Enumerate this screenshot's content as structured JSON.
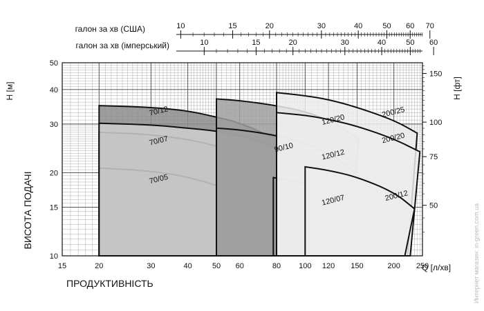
{
  "chart_data": {
    "type": "area",
    "title": "",
    "xlabel": "Q [л/хв]",
    "ylabel": "ВИСОТА ПОДАЧІ",
    "ylabel_units_left": "H [м]",
    "ylabel_units_right": "H [фт]",
    "xlabel_bottom_caption": "ПРОДУКТИВНІСТЬ",
    "xscale": "log",
    "yscale": "log",
    "xlim": [
      15,
      250
    ],
    "ylim": [
      10,
      50
    ],
    "grid": true,
    "x_ticks": [
      15,
      20,
      30,
      40,
      50,
      60,
      80,
      100,
      120,
      150,
      200,
      250
    ],
    "y_ticks_left": [
      10,
      15,
      20,
      30,
      40,
      50
    ],
    "y_ticks_right": [
      50,
      75,
      100,
      150
    ],
    "top_axes": [
      {
        "label": "галон за хв (США)",
        "ticks": [
          10,
          15,
          20,
          30,
          40,
          50,
          60,
          70
        ]
      },
      {
        "label": "галон за хв (імперський)",
        "ticks": [
          10,
          15,
          20,
          30,
          40,
          50,
          60
        ]
      }
    ],
    "series": [
      {
        "name": "70/12",
        "fill": "#8c8c8c",
        "x": [
          20,
          30,
          40,
          50,
          60,
          80
        ],
        "y": [
          35,
          34.5,
          33.5,
          31.8,
          30.3,
          26.5
        ]
      },
      {
        "name": "70/07",
        "fill": "#8c8c8c",
        "x": [
          20,
          30,
          40,
          50,
          60,
          70,
          80,
          84
        ],
        "y": [
          28,
          27.5,
          26.4,
          25,
          23.5,
          21.7,
          19.3,
          17.8
        ]
      },
      {
        "name": "70/05",
        "fill": "#8c8c8c",
        "x": [
          20,
          30,
          40,
          50,
          60,
          70,
          80,
          91
        ],
        "y": [
          20.8,
          20.3,
          19.3,
          18,
          16.8,
          15.5,
          14.2,
          13
        ]
      },
      {
        "name": "90/10",
        "fill": "#cfcfcf",
        "x": [
          20,
          30,
          40,
          50,
          60,
          80,
          100,
          110
        ],
        "y": [
          30.2,
          29.8,
          29,
          28.3,
          27.3,
          24.8,
          21.5,
          19.5
        ]
      },
      {
        "name": "120/20",
        "fill": "#9f9f9f",
        "x": [
          50,
          60,
          80,
          100,
          120,
          140,
          152
        ],
        "y": [
          37,
          36.5,
          35,
          33.3,
          31,
          28.2,
          26.5
        ]
      },
      {
        "name": "120/12",
        "fill": "#9f9f9f",
        "x": [
          50,
          60,
          80,
          100,
          120,
          140,
          160
        ],
        "y": [
          29,
          28.6,
          27.3,
          25.5,
          23.5,
          21,
          18.5
        ]
      },
      {
        "name": "120/07",
        "fill": "#9f9f9f",
        "x": [
          78,
          100,
          120,
          140,
          160,
          178
        ],
        "y": [
          19.2,
          18.3,
          17.2,
          15.8,
          14.3,
          12.8
        ]
      },
      {
        "name": "200/25",
        "fill": "#ececec",
        "x": [
          80,
          100,
          120,
          150,
          200,
          240
        ],
        "y": [
          39,
          38,
          36.8,
          34.5,
          31,
          27.8
        ]
      },
      {
        "name": "200/20",
        "fill": "#ececec",
        "x": [
          80,
          100,
          120,
          150,
          200,
          245
        ],
        "y": [
          33,
          32.3,
          31.2,
          29.5,
          26.5,
          23.8
        ]
      },
      {
        "name": "200/12",
        "fill": "#ececec",
        "x": [
          100,
          120,
          150,
          200,
          235
        ],
        "y": [
          21,
          20.4,
          19.3,
          17,
          14.8
        ]
      }
    ],
    "label_positions_data": [
      {
        "name": "70/12",
        "x": 32,
        "y": 32.8
      },
      {
        "name": "70/07",
        "x": 32,
        "y": 25.6
      },
      {
        "name": "70/05",
        "x": 32,
        "y": 18.6
      },
      {
        "name": "90/10",
        "x": 85,
        "y": 24.2
      },
      {
        "name": "120/20",
        "x": 125,
        "y": 30.5
      },
      {
        "name": "120/12",
        "x": 125,
        "y": 22.8
      },
      {
        "name": "120/07",
        "x": 125,
        "y": 15.6
      },
      {
        "name": "200/25",
        "x": 200,
        "y": 32.5
      },
      {
        "name": "200/20",
        "x": 200,
        "y": 26.2
      },
      {
        "name": "200/12",
        "x": 205,
        "y": 16.2
      }
    ]
  },
  "watermark": "Интернет магазин: in-green.com.ua"
}
